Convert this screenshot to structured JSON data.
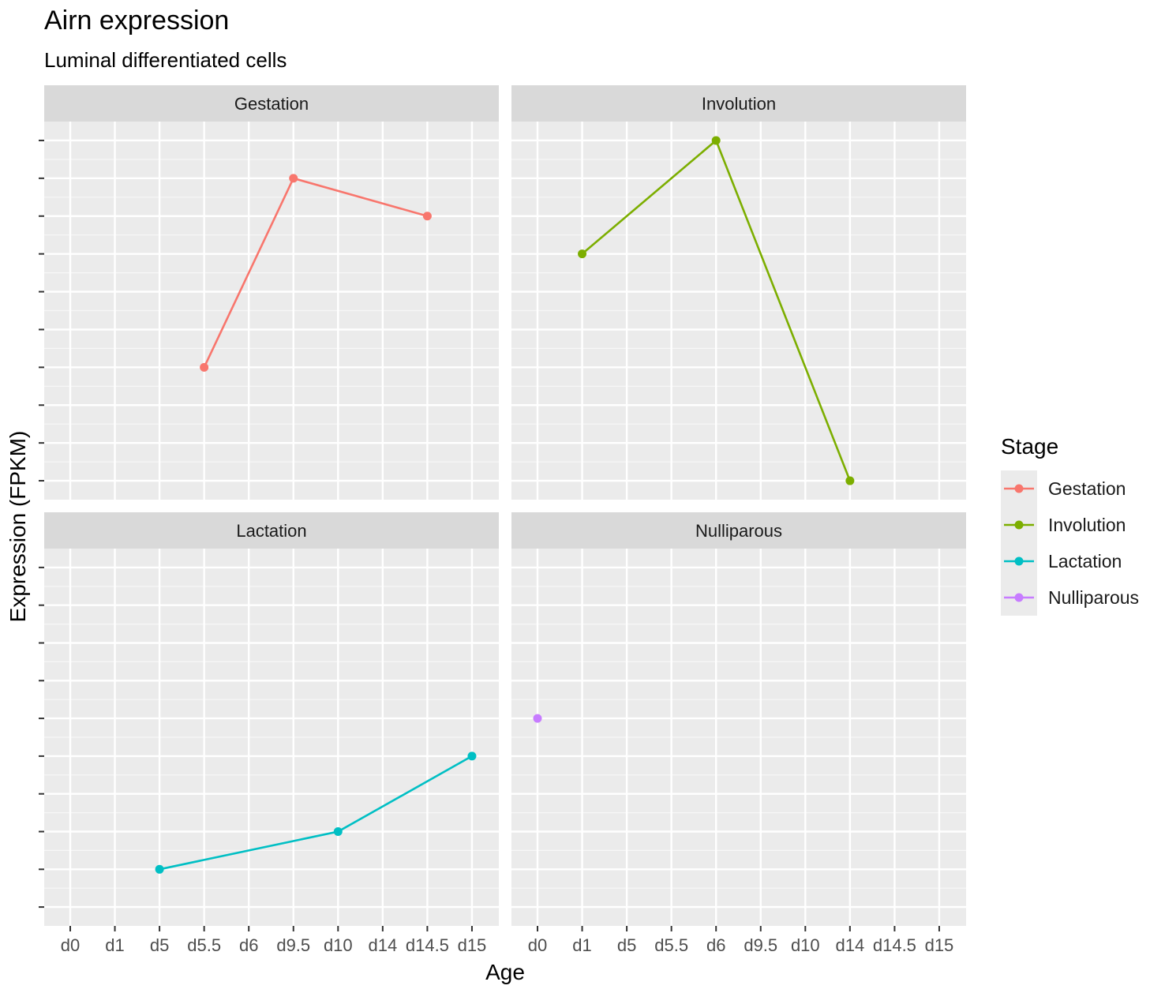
{
  "chart_data": {
    "type": "line",
    "title": "Airn expression",
    "subtitle": "Luminal differentiated cells",
    "xlabel": "Age",
    "ylabel": "Expression (FPKM)",
    "categories": [
      "d0",
      "d1",
      "d5",
      "d5.5",
      "d6",
      "d9.5",
      "d10",
      "d14",
      "d14.5",
      "d15"
    ],
    "y_tick_labels_shown": false,
    "ylim": [
      0.5,
      10.5
    ],
    "grid": true,
    "legend": {
      "title": "Stage",
      "placement": "right",
      "entries": [
        "Gestation",
        "Involution",
        "Lactation",
        "Nulliparous"
      ]
    },
    "colors": {
      "Gestation": "#F8766D",
      "Involution": "#7CAE00",
      "Lactation": "#00BFC4",
      "Nulliparous": "#C77CFF"
    },
    "facets": [
      {
        "label": "Gestation",
        "series": {
          "name": "Gestation",
          "x": [
            "d5.5",
            "d9.5",
            "d14.5"
          ],
          "y": [
            4,
            9,
            8
          ]
        }
      },
      {
        "label": "Involution",
        "series": {
          "name": "Involution",
          "x": [
            "d1",
            "d6",
            "d14"
          ],
          "y": [
            7,
            10,
            1
          ]
        }
      },
      {
        "label": "Lactation",
        "series": {
          "name": "Lactation",
          "x": [
            "d5",
            "d10",
            "d15"
          ],
          "y": [
            2,
            3,
            5
          ]
        }
      },
      {
        "label": "Nulliparous",
        "series": {
          "name": "Nulliparous",
          "x": [
            "d0"
          ],
          "y": [
            6
          ]
        }
      }
    ]
  }
}
